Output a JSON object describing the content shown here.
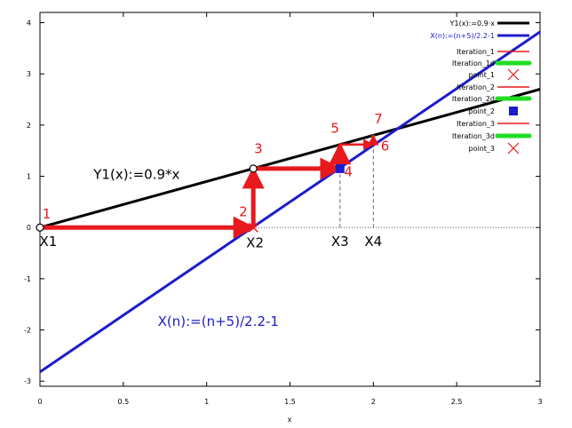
{
  "chart_data": {
    "type": "line",
    "xlabel": "x",
    "ylabel": "",
    "xlim": [
      0,
      3
    ],
    "ylim": [
      -3.1,
      4.2
    ],
    "xticks": [
      0,
      0.5,
      1,
      1.5,
      2,
      2.5,
      3
    ],
    "yticks": [
      -3,
      -2,
      -1,
      0,
      1,
      2,
      3,
      4
    ],
    "xtick_labels": [
      "0",
      "0.5",
      "1",
      "1.5",
      "2",
      "2.5",
      "3"
    ],
    "ytick_labels": [
      "-3",
      "-2",
      "-1",
      "0",
      "1",
      "2",
      "3",
      "4"
    ],
    "series": [
      {
        "name": "Y1(x):=0.9·x",
        "color": "#000000",
        "x": [
          0,
          3
        ],
        "y": [
          0,
          2.7
        ]
      },
      {
        "name": "X(n):=(n+5)/2.2-1",
        "color": "#1c1ccc",
        "x": [
          0,
          3
        ],
        "y": [
          -2.82,
          3.82
        ]
      }
    ],
    "iteration_path": [
      {
        "x": 0,
        "y": 0
      },
      {
        "x": 1.28,
        "y": 0
      },
      {
        "x": 1.28,
        "y": 1.15
      },
      {
        "x": 1.8,
        "y": 1.15
      },
      {
        "x": 1.8,
        "y": 1.62
      },
      {
        "x": 2.0,
        "y": 1.62
      },
      {
        "x": 2.0,
        "y": 1.8
      }
    ],
    "open_circles": [
      {
        "x": 0,
        "y": 0
      },
      {
        "x": 1.28,
        "y": 1.15
      }
    ],
    "cross_markers": [
      {
        "x": 1.28,
        "y": 0
      }
    ],
    "square_markers": [
      {
        "x": 1.8,
        "y": 1.15
      }
    ],
    "green_segments": [
      {
        "x": [
          1.28,
          1.28
        ],
        "y": [
          0,
          1.15
        ]
      },
      {
        "x": [
          1.8,
          1.8
        ],
        "y": [
          1.15,
          1.62
        ]
      },
      {
        "x": [
          2.0,
          2.0
        ],
        "y": [
          1.62,
          1.8
        ]
      }
    ],
    "dashed_verticals": [
      {
        "x": 1.8,
        "y": [
          0,
          1.15
        ]
      },
      {
        "x": 2.0,
        "y": [
          0,
          1.62
        ]
      }
    ],
    "point_labels": [
      {
        "text": "1",
        "x": 0.04,
        "y": 0.18
      },
      {
        "text": "2",
        "x": 1.22,
        "y": 0.22
      },
      {
        "text": "3",
        "x": 1.31,
        "y": 1.45
      },
      {
        "text": "4",
        "x": 1.85,
        "y": 1.0
      },
      {
        "text": "5",
        "x": 1.77,
        "y": 1.85
      },
      {
        "text": "6",
        "x": 2.07,
        "y": 1.5
      },
      {
        "text": "7",
        "x": 2.03,
        "y": 2.03
      }
    ],
    "x_labels": [
      {
        "text": "X1",
        "x": 0.05,
        "y": -0.27
      },
      {
        "text": "X2",
        "x": 1.29,
        "y": -0.3
      },
      {
        "text": "X3",
        "x": 1.8,
        "y": -0.27
      },
      {
        "text": "X4",
        "x": 2.0,
        "y": -0.27
      }
    ],
    "annotations": [
      {
        "text": "Y1(x):=0.9*x",
        "x": 0.58,
        "y": 0.95,
        "color": "#000000"
      },
      {
        "text": "X(n):=(n+5)/2.2-1",
        "x": 1.07,
        "y": -1.92,
        "color": "#1c1ccc"
      }
    ],
    "legend": {
      "position": "top-right",
      "entries": [
        {
          "label": "Y1(x):=0.9·x",
          "style": "line",
          "color": "#000000",
          "text_color": "#000000"
        },
        {
          "label": "X(n):=(n+5)/2.2-1",
          "style": "line",
          "color": "#1c1ccc",
          "text_color": "#1c1ccc"
        },
        {
          "label": "Iteration_1",
          "style": "thin",
          "color": "#e8191c",
          "text_color": "#000000"
        },
        {
          "label": "Iteration_1d",
          "style": "thick",
          "color": "#22dd22",
          "text_color": "#000000"
        },
        {
          "label": "point_1",
          "style": "cross",
          "color": "#e8191c",
          "text_color": "#000000"
        },
        {
          "label": "Iteration_2",
          "style": "thin",
          "color": "#e8191c",
          "text_color": "#000000"
        },
        {
          "label": "Iteration_2d",
          "style": "thick",
          "color": "#22dd22",
          "text_color": "#000000"
        },
        {
          "label": "point_2",
          "style": "square",
          "color": "#1c1ccc",
          "text_color": "#000000"
        },
        {
          "label": "Iteration_3",
          "style": "thin",
          "color": "#e8191c",
          "text_color": "#000000"
        },
        {
          "label": "Iteration_3d",
          "style": "thick",
          "color": "#22dd22",
          "text_color": "#000000"
        },
        {
          "label": "point_3",
          "style": "cross",
          "color": "#e8191c",
          "text_color": "#000000"
        }
      ]
    }
  }
}
